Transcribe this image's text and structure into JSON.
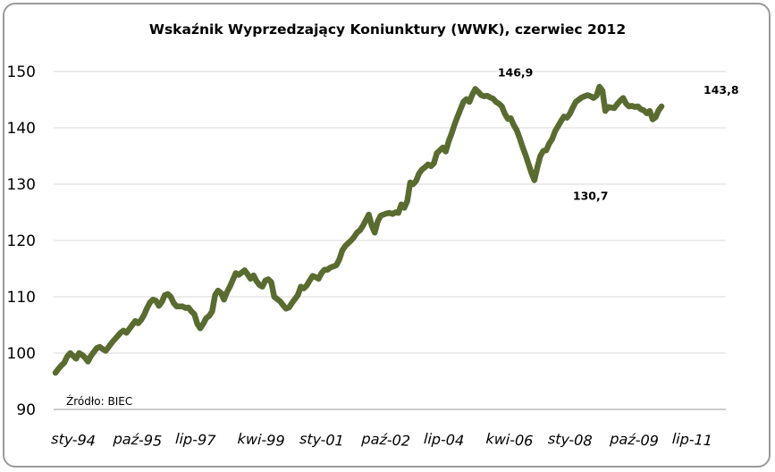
{
  "chart_data": {
    "type": "line",
    "title": "Wskaźnik Wyprzedzający Koniunktury (WWK), czerwiec 2012",
    "source": "Źródło: BIEC",
    "ylim": [
      90,
      150
    ],
    "y_ticks": [
      90,
      100,
      110,
      120,
      130,
      140,
      150
    ],
    "x_tick_labels": [
      "sty-94",
      "paź-95",
      "lip-97",
      "kwi-99",
      "sty-01",
      "paź-02",
      "lip-04",
      "kwi-06",
      "sty-08",
      "paź-09",
      "lip-11"
    ],
    "x_start": "1994-01",
    "x_end": "2012-06",
    "line_color": "#5a6b30",
    "grid": "horizontal",
    "annotations": [
      {
        "label": "146,9",
        "x": "2007-03",
        "y": 146.9
      },
      {
        "label": "130,7",
        "x": "2009-02",
        "y": 130.7
      },
      {
        "label": "143,8",
        "x": "2012-06",
        "y": 143.8
      }
    ],
    "series": [
      {
        "values": [
          96.5,
          97.2,
          97.8,
          98.3,
          99.4,
          100.0,
          99.5,
          99.0,
          100.0,
          99.7,
          99.2,
          98.5,
          99.5,
          100.2,
          100.9,
          101.1,
          100.7,
          100.4,
          101.1,
          101.8,
          102.4,
          103.0,
          103.6,
          104.0,
          103.6,
          104.3,
          105.0,
          105.7,
          105.3,
          105.9,
          106.8,
          108.0,
          109.0,
          109.5,
          109.3,
          108.4,
          109.1,
          110.3,
          110.5,
          110.0,
          108.9,
          108.3,
          108.3,
          108.3,
          108.0,
          108.1,
          107.4,
          106.9,
          105.2,
          104.4,
          105.2,
          106.2,
          106.6,
          107.4,
          110.3,
          111.1,
          110.7,
          109.5,
          110.8,
          111.8,
          113.0,
          114.2,
          113.9,
          114.3,
          114.7,
          114.0,
          113.2,
          113.8,
          112.8,
          112.1,
          111.8,
          112.9,
          113.1,
          112.6,
          110.0,
          109.6,
          109.2,
          108.5,
          107.9,
          108.1,
          108.9,
          109.6,
          110.3,
          111.8,
          111.5,
          112.0,
          112.9,
          113.7,
          113.5,
          113.2,
          114.2,
          114.8,
          114.8,
          115.2,
          115.4,
          115.6,
          116.6,
          118.2,
          119.0,
          119.5,
          120.0,
          120.6,
          121.4,
          121.8,
          122.6,
          123.6,
          124.6,
          122.6,
          121.4,
          123.4,
          124.4,
          124.6,
          124.8,
          124.9,
          124.7,
          125.0,
          124.9,
          126.4,
          125.8,
          127.0,
          130.3,
          130.0,
          130.6,
          131.9,
          132.6,
          133.0,
          133.5,
          133.2,
          133.7,
          135.5,
          136.0,
          136.5,
          135.8,
          137.6,
          139.0,
          140.6,
          142.0,
          143.3,
          144.6,
          145.1,
          144.6,
          145.9,
          146.9,
          146.4,
          145.8,
          145.6,
          145.7,
          145.4,
          145.2,
          144.6,
          144.3,
          143.8,
          142.5,
          141.6,
          141.7,
          140.5,
          139.6,
          138.2,
          136.6,
          135.2,
          133.6,
          132.0,
          130.7,
          133.0,
          135.0,
          135.9,
          136.0,
          137.2,
          138.0,
          139.4,
          140.3,
          141.2,
          142.0,
          141.8,
          142.5,
          143.6,
          144.6,
          145.0,
          145.4,
          145.6,
          145.8,
          145.6,
          145.3,
          145.7,
          147.3,
          146.6,
          143.0,
          143.7,
          143.6,
          143.5,
          144.2,
          144.8,
          145.3,
          144.3,
          143.8,
          143.9,
          143.7,
          143.8,
          143.3,
          143.1,
          142.6,
          143.0,
          141.5,
          141.9,
          143.1,
          143.8
        ]
      }
    ]
  }
}
